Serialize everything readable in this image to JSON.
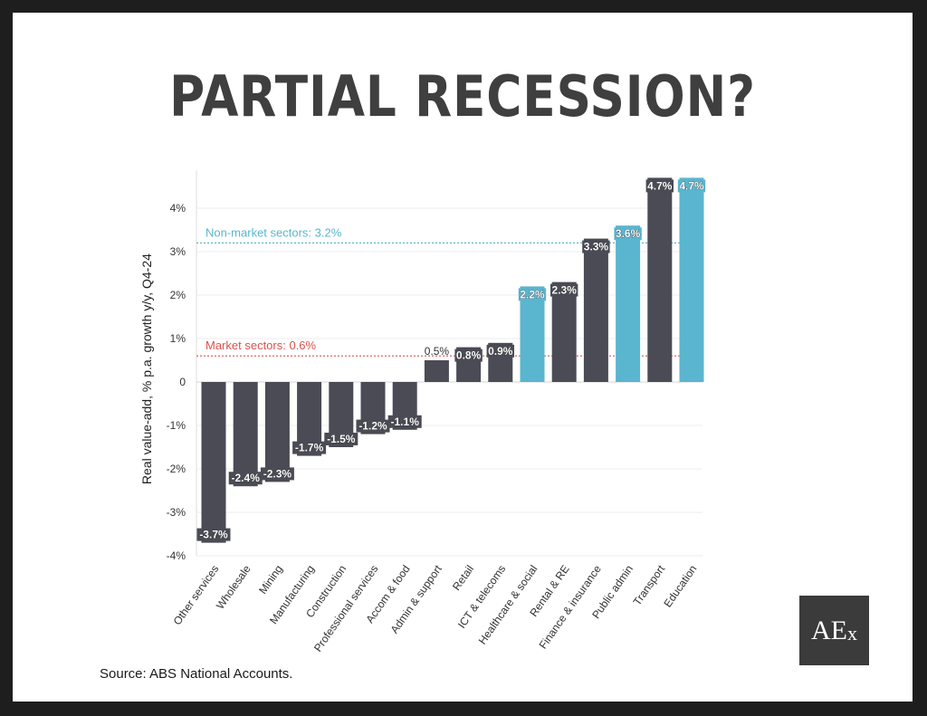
{
  "title": "PARTIAL RECESSION?",
  "source": "Source: ABS National Accounts.",
  "logo": {
    "text": "AE",
    "small": "x"
  },
  "colors": {
    "market": "#4a4b55",
    "non_market": "#5ab5cf",
    "market_line": "#d9534f",
    "non_market_line": "#5ab5cf"
  },
  "chart_data": {
    "type": "bar",
    "ylabel": "Real value-add, % p.a. growth y/y, Q4-24",
    "ylim": [
      -4,
      4.7
    ],
    "yticks": [
      -4,
      -3,
      -2,
      -1,
      0,
      1,
      2,
      3,
      4
    ],
    "ytick_labels": [
      "-4%",
      "-3%",
      "-2%",
      "-1%",
      "0",
      "1%",
      "2%",
      "3%",
      "4%"
    ],
    "grid": true,
    "categories": [
      "Other services",
      "Wholesale",
      "Mining",
      "Manufacturing",
      "Construction",
      "Professional services",
      "Accom & food",
      "Admin & support",
      "Retail",
      "ICT & telecoms",
      "Healthcare & social",
      "Rental & RE",
      "Finance & insurance",
      "Public admin",
      "Transport",
      "Education"
    ],
    "values": [
      -3.7,
      -2.4,
      -2.3,
      -1.7,
      -1.5,
      -1.2,
      -1.1,
      0.5,
      0.8,
      0.9,
      2.2,
      2.3,
      3.3,
      3.6,
      4.7,
      4.7
    ],
    "labels": [
      "-3.7%",
      "-2.4%",
      "-2.3%",
      "-1.7%",
      "-1.5%",
      "-1.2%",
      "-1.1%",
      "0.5%",
      "0.8%",
      "0.9%",
      "2.2%",
      "2.3%",
      "3.3%",
      "3.6%",
      "4.7%",
      "4.7%"
    ],
    "sector_type": [
      "market",
      "market",
      "market",
      "market",
      "market",
      "market",
      "market",
      "market",
      "market",
      "market",
      "non_market",
      "market",
      "market",
      "non_market",
      "market",
      "non_market"
    ],
    "reference_lines": [
      {
        "label": "Non-market sectors: 3.2%",
        "value": 3.2,
        "color": "#5ab5cf"
      },
      {
        "label": "Market sectors: 0.6%",
        "value": 0.6,
        "color": "#d9534f"
      }
    ]
  }
}
